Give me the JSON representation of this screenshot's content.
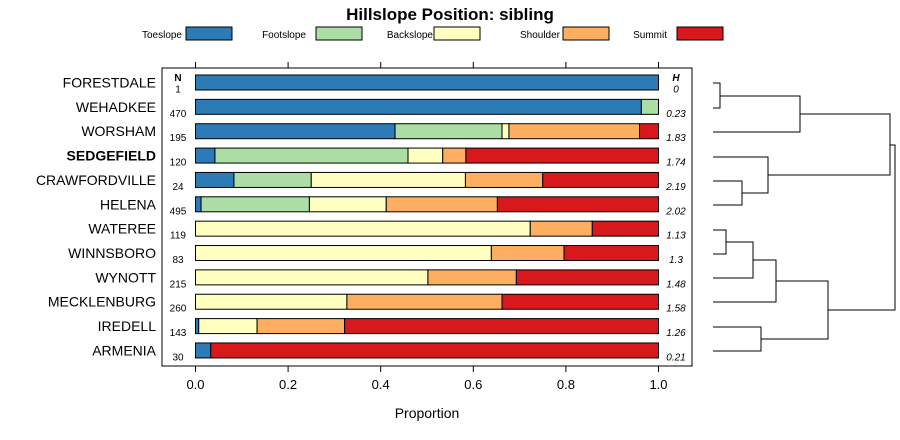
{
  "chart_data": {
    "type": "bar",
    "orientation": "horizontal",
    "stacked": true,
    "title": "Hillslope Position: sibling",
    "xlabel": "Proportion",
    "xlim": [
      0,
      1
    ],
    "xticks": [
      "0.0",
      "0.2",
      "0.4",
      "0.6",
      "0.8",
      "1.0"
    ],
    "n_header": "N",
    "h_header": "H",
    "highlighted_category": "SEDGEFIELD",
    "legend_position": "top",
    "series": [
      {
        "name": "Toeslope",
        "color": "#2c7bb6"
      },
      {
        "name": "Footslope",
        "color": "#abdda4"
      },
      {
        "name": "Backslope",
        "color": "#ffffbf"
      },
      {
        "name": "Shoulder",
        "color": "#fdae61"
      },
      {
        "name": "Summit",
        "color": "#d7191c"
      }
    ],
    "categories": [
      {
        "name": "FORESTDALE",
        "n": "1",
        "h": "0",
        "values": [
          1.0,
          0,
          0,
          0,
          0
        ]
      },
      {
        "name": "WEHADKEE",
        "n": "470",
        "h": "0.23",
        "values": [
          0.963,
          0.037,
          0,
          0,
          0
        ]
      },
      {
        "name": "WORSHAM",
        "n": "195",
        "h": "1.83",
        "values": [
          0.431,
          0.231,
          0.015,
          0.282,
          0.041
        ]
      },
      {
        "name": "SEDGEFIELD",
        "n": "120",
        "h": "1.74",
        "values": [
          0.042,
          0.417,
          0.075,
          0.05,
          0.416
        ]
      },
      {
        "name": "CRAWFORDVILLE",
        "n": "24",
        "h": "2.19",
        "values": [
          0.083,
          0.167,
          0.333,
          0.167,
          0.25
        ]
      },
      {
        "name": "HELENA",
        "n": "495",
        "h": "2.02",
        "values": [
          0.012,
          0.234,
          0.166,
          0.24,
          0.348
        ]
      },
      {
        "name": "WATEREE",
        "n": "119",
        "h": "1.13",
        "values": [
          0,
          0,
          0.723,
          0.134,
          0.143
        ]
      },
      {
        "name": "WINNSBORO",
        "n": "83",
        "h": "1.3",
        "values": [
          0,
          0,
          0.639,
          0.157,
          0.204
        ]
      },
      {
        "name": "WYNOTT",
        "n": "215",
        "h": "1.48",
        "values": [
          0,
          0,
          0.502,
          0.191,
          0.307
        ]
      },
      {
        "name": "MECKLENBURG",
        "n": "260",
        "h": "1.58",
        "values": [
          0,
          0,
          0.327,
          0.335,
          0.338
        ]
      },
      {
        "name": "IREDELL",
        "n": "143",
        "h": "1.26",
        "values": [
          0.007,
          0,
          0.126,
          0.189,
          0.678
        ]
      },
      {
        "name": "ARMENIA",
        "n": "30",
        "h": "0.21",
        "values": [
          0.033,
          0,
          0,
          0,
          0.967
        ]
      }
    ]
  }
}
